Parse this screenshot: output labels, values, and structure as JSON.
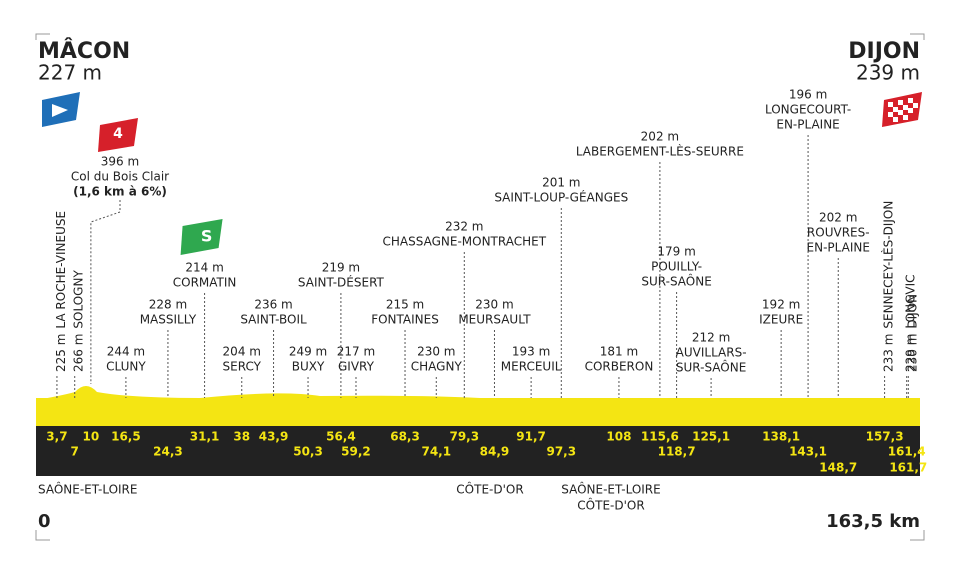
{
  "start": {
    "name": "MÂCON",
    "altitude": "227 m"
  },
  "finish": {
    "name": "DIJON",
    "altitude": "239 m"
  },
  "climb": {
    "category": "4",
    "altitude": "396 m",
    "name": "Col du Bois Clair",
    "detail": "(1,6 km à 6%)"
  },
  "sprint": {
    "symbol": "S"
  },
  "waypoints": [
    {
      "km": "3,7",
      "altitude": "225 m",
      "name": [
        "LA ROCHE-VINEUSE"
      ],
      "vertical": true
    },
    {
      "km": "7",
      "altitude": "266 m",
      "name": [
        "SOLOGNY"
      ],
      "vertical": true
    },
    {
      "km": "10",
      "climb": true
    },
    {
      "km": "16,5",
      "altitude": "244 m",
      "name": [
        "CLUNY"
      ]
    },
    {
      "km": "24,3",
      "altitude": "228 m",
      "name": [
        "MASSILLY"
      ]
    },
    {
      "km": "31,1",
      "altitude": "214 m",
      "name": [
        "CORMATIN"
      ],
      "sprint": true
    },
    {
      "km": "38",
      "altitude": "204 m",
      "name": [
        "SERCY"
      ]
    },
    {
      "km": "43,9",
      "altitude": "236 m",
      "name": [
        "SAINT-BOIL"
      ]
    },
    {
      "km": "50,3",
      "altitude": "249 m",
      "name": [
        "BUXY"
      ]
    },
    {
      "km": "56,4",
      "altitude": "219 m",
      "name": [
        "SAINT-DÉSERT"
      ]
    },
    {
      "km": "59,2",
      "altitude": "217 m",
      "name": [
        "GIVRY"
      ]
    },
    {
      "km": "68,3",
      "altitude": "215 m",
      "name": [
        "FONTAINES"
      ]
    },
    {
      "km": "74,1",
      "altitude": "230 m",
      "name": [
        "CHAGNY"
      ]
    },
    {
      "km": "79,3",
      "altitude": "232 m",
      "name": [
        "CHASSAGNE-MONTRACHET"
      ]
    },
    {
      "km": "84,9",
      "altitude": "230 m",
      "name": [
        "MEURSAULT"
      ]
    },
    {
      "km": "91,7",
      "altitude": "193 m",
      "name": [
        "MERCEUIL"
      ]
    },
    {
      "km": "97,3",
      "altitude": "201 m",
      "name": [
        "SAINT-LOUP-GÉANGES"
      ]
    },
    {
      "km": "108",
      "altitude": "181 m",
      "name": [
        "CORBERON"
      ]
    },
    {
      "km": "115,6",
      "altitude": "202 m",
      "name": [
        "LABERGEMENT-LÈS-SEURRE"
      ]
    },
    {
      "km": "118,7",
      "altitude": "179 m",
      "name": [
        "POUILLY-",
        "SUR-SAÔNE"
      ]
    },
    {
      "km": "125,1",
      "altitude": "212 m",
      "name": [
        "AUVILLARS-",
        "SUR-SAÔNE"
      ]
    },
    {
      "km": "138,1",
      "altitude": "192 m",
      "name": [
        "IZEURE"
      ]
    },
    {
      "km": "143,1",
      "altitude": "196 m",
      "name": [
        "LONGECOURT-",
        "EN-PLAINE"
      ]
    },
    {
      "km": "148,7",
      "altitude": "202 m",
      "name": [
        "ROUVRES-",
        "EN-PLAINE"
      ]
    },
    {
      "km": "157,3",
      "altitude": "233 m",
      "name": [
        "SENNECEY-LÈS-DIJON"
      ],
      "vertical": true
    },
    {
      "km": "161,4",
      "altitude": "229 m",
      "name": [
        "LONGVIC"
      ],
      "vertical": true
    },
    {
      "km": "161,7",
      "altitude": "230 m",
      "name": [
        "DIJON"
      ],
      "vertical": true
    }
  ],
  "regions": {
    "left": [
      "SAÔNE-ET-LOIRE"
    ],
    "middle": [
      "CÔTE-D'OR"
    ],
    "border": [
      "SAÔNE-ET-LOIRE",
      "CÔTE-D'OR"
    ]
  },
  "distance": {
    "start": "0",
    "end": "163,5 km"
  }
}
